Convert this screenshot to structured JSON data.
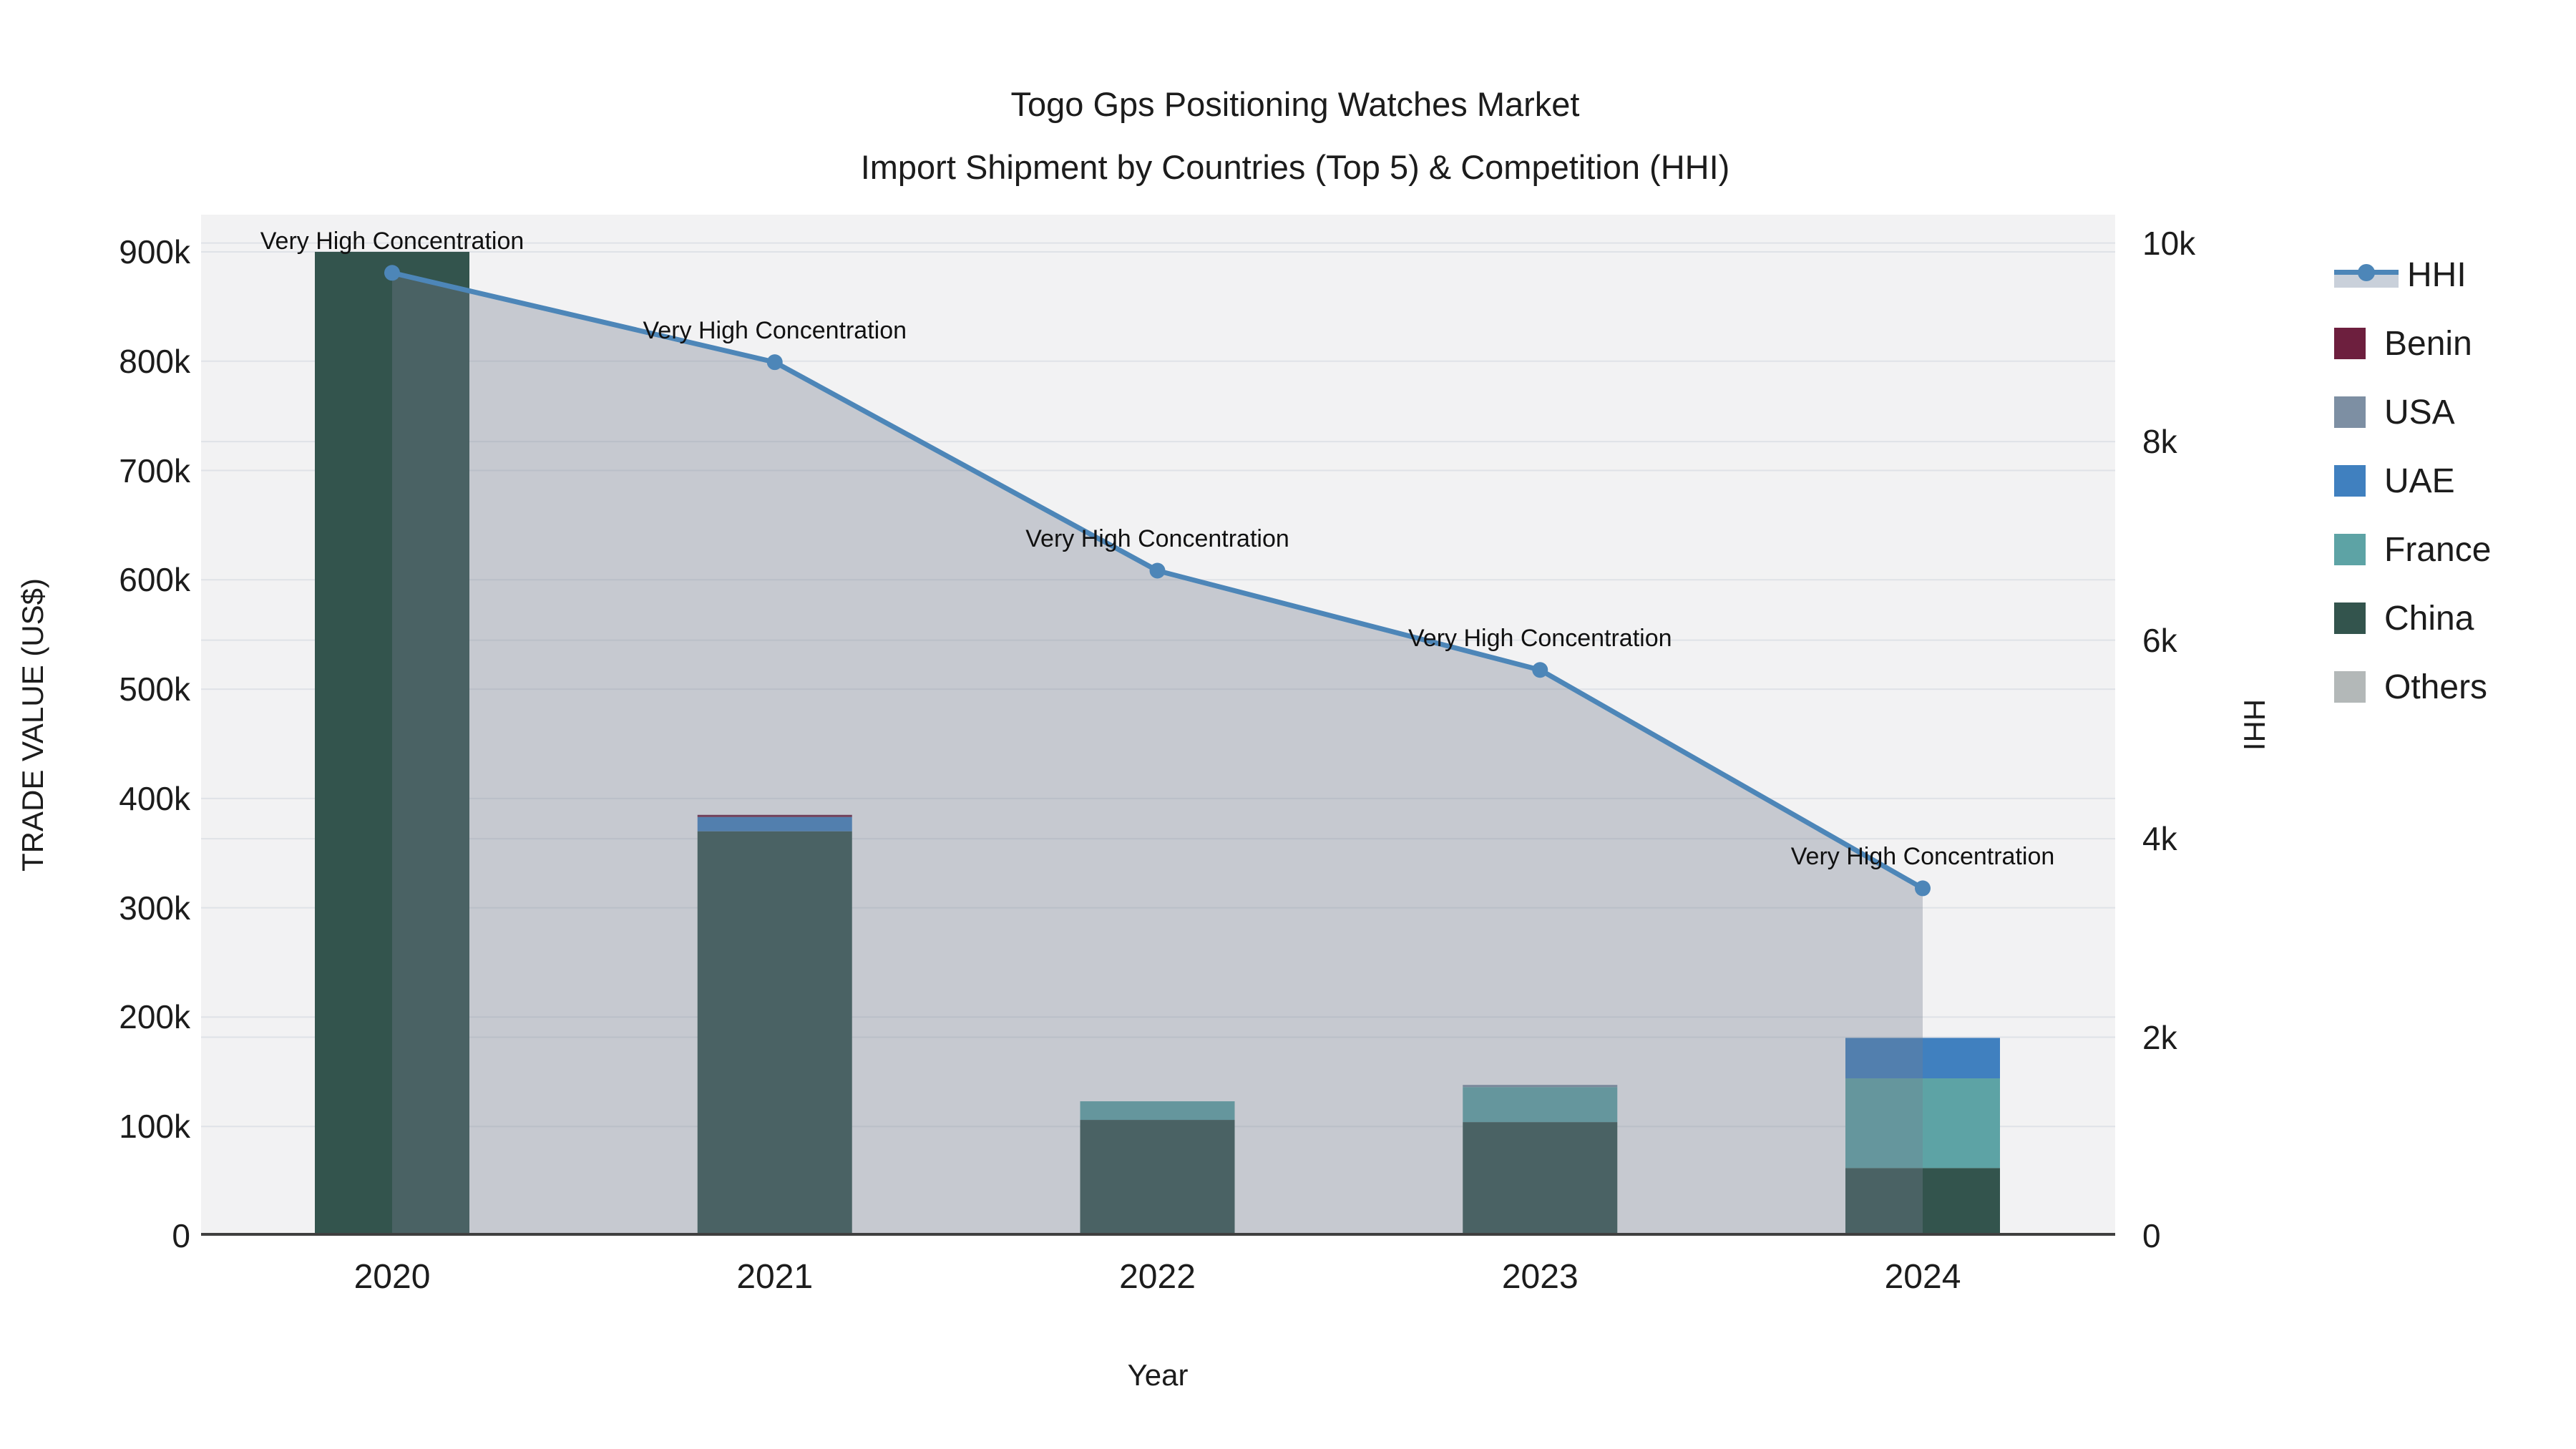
{
  "title": {
    "line1": "Togo Gps Positioning Watches Market",
    "line2": "Import Shipment by Countries (Top 5) & Competition (HHI)"
  },
  "axes": {
    "x_title": "Year",
    "left_title": "TRADE VALUE (US$)",
    "right_title": "HHI"
  },
  "legend": {
    "items": [
      {
        "label": "HHI",
        "type": "line",
        "color": "#4d86b8",
        "band_color": "#c9d0da"
      },
      {
        "label": "Benin",
        "type": "square",
        "color": "#6d1f3e"
      },
      {
        "label": "USA",
        "type": "square",
        "color": "#7d8fa3"
      },
      {
        "label": "UAE",
        "type": "square",
        "color": "#4080bf"
      },
      {
        "label": "France",
        "type": "square",
        "color": "#5da3a5"
      },
      {
        "label": "China",
        "type": "square",
        "color": "#33544d"
      },
      {
        "label": "Others",
        "type": "square",
        "color": "#b3b8b8"
      }
    ]
  },
  "chart_data": {
    "type": "combo_stacked_bar_line",
    "title": "Togo Gps Positioning Watches Market — Import Shipment by Countries (Top 5) & Competition (HHI)",
    "categories": [
      "2020",
      "2021",
      "2022",
      "2023",
      "2024"
    ],
    "bar_unit": "thousand US$",
    "series": [
      {
        "name": "Benin",
        "color": "#6d1f3e",
        "values_k": [
          0,
          2,
          0,
          0,
          0
        ]
      },
      {
        "name": "USA",
        "color": "#7d8fa3",
        "values_k": [
          0,
          0,
          0,
          2,
          0
        ]
      },
      {
        "name": "UAE",
        "color": "#4080bf",
        "values_k": [
          0,
          13,
          0,
          0,
          37
        ]
      },
      {
        "name": "France",
        "color": "#5da3a5",
        "values_k": [
          0,
          0,
          17,
          32,
          82
        ]
      },
      {
        "name": "China",
        "color": "#33544d",
        "values_k": [
          900,
          370,
          106,
          104,
          62
        ]
      },
      {
        "name": "Others",
        "color": "#b3b8b8",
        "values_k": [
          0,
          0,
          0,
          0,
          0
        ]
      }
    ],
    "stack_order_bottom_to_top": [
      "China",
      "France",
      "UAE",
      "USA",
      "Benin",
      "Others"
    ],
    "line_series": {
      "name": "HHI",
      "color": "#4d86b8",
      "area_fill": "rgba(118,126,143,0.35)",
      "values": [
        9700,
        8800,
        6700,
        5700,
        3500
      ]
    },
    "annotations": [
      {
        "text": "Very High Concentration",
        "category": "2020",
        "hhi": 9700
      },
      {
        "text": "Very High Concentration",
        "category": "2021",
        "hhi": 8800
      },
      {
        "text": "Very High Concentration",
        "category": "2022",
        "hhi": 6700
      },
      {
        "text": "Very High Concentration",
        "category": "2023",
        "hhi": 5700
      },
      {
        "text": "Very High Concentration",
        "category": "2024",
        "hhi": 3500
      }
    ],
    "left_axis": {
      "title": "TRADE VALUE (US$)",
      "tick_values_k": [
        0,
        100,
        200,
        300,
        400,
        500,
        600,
        700,
        800,
        900
      ],
      "tick_labels": [
        "0",
        "100k",
        "200k",
        "300k",
        "400k",
        "500k",
        "600k",
        "700k",
        "800k",
        "900k"
      ],
      "range_k": [
        0,
        934
      ]
    },
    "right_axis": {
      "title": "HHI",
      "tick_values": [
        0,
        2000,
        4000,
        6000,
        8000,
        10000
      ],
      "tick_labels": [
        "0",
        "2k",
        "4k",
        "6k",
        "8k",
        "10k"
      ],
      "range": [
        0,
        10286
      ]
    },
    "x_axis": {
      "title": "Year"
    },
    "grid": {
      "color": "#dfe2e7",
      "left_grid": true,
      "right_grid": true
    },
    "plot_background": "#f2f2f3",
    "axis_line_color": "#3f3f3f"
  }
}
